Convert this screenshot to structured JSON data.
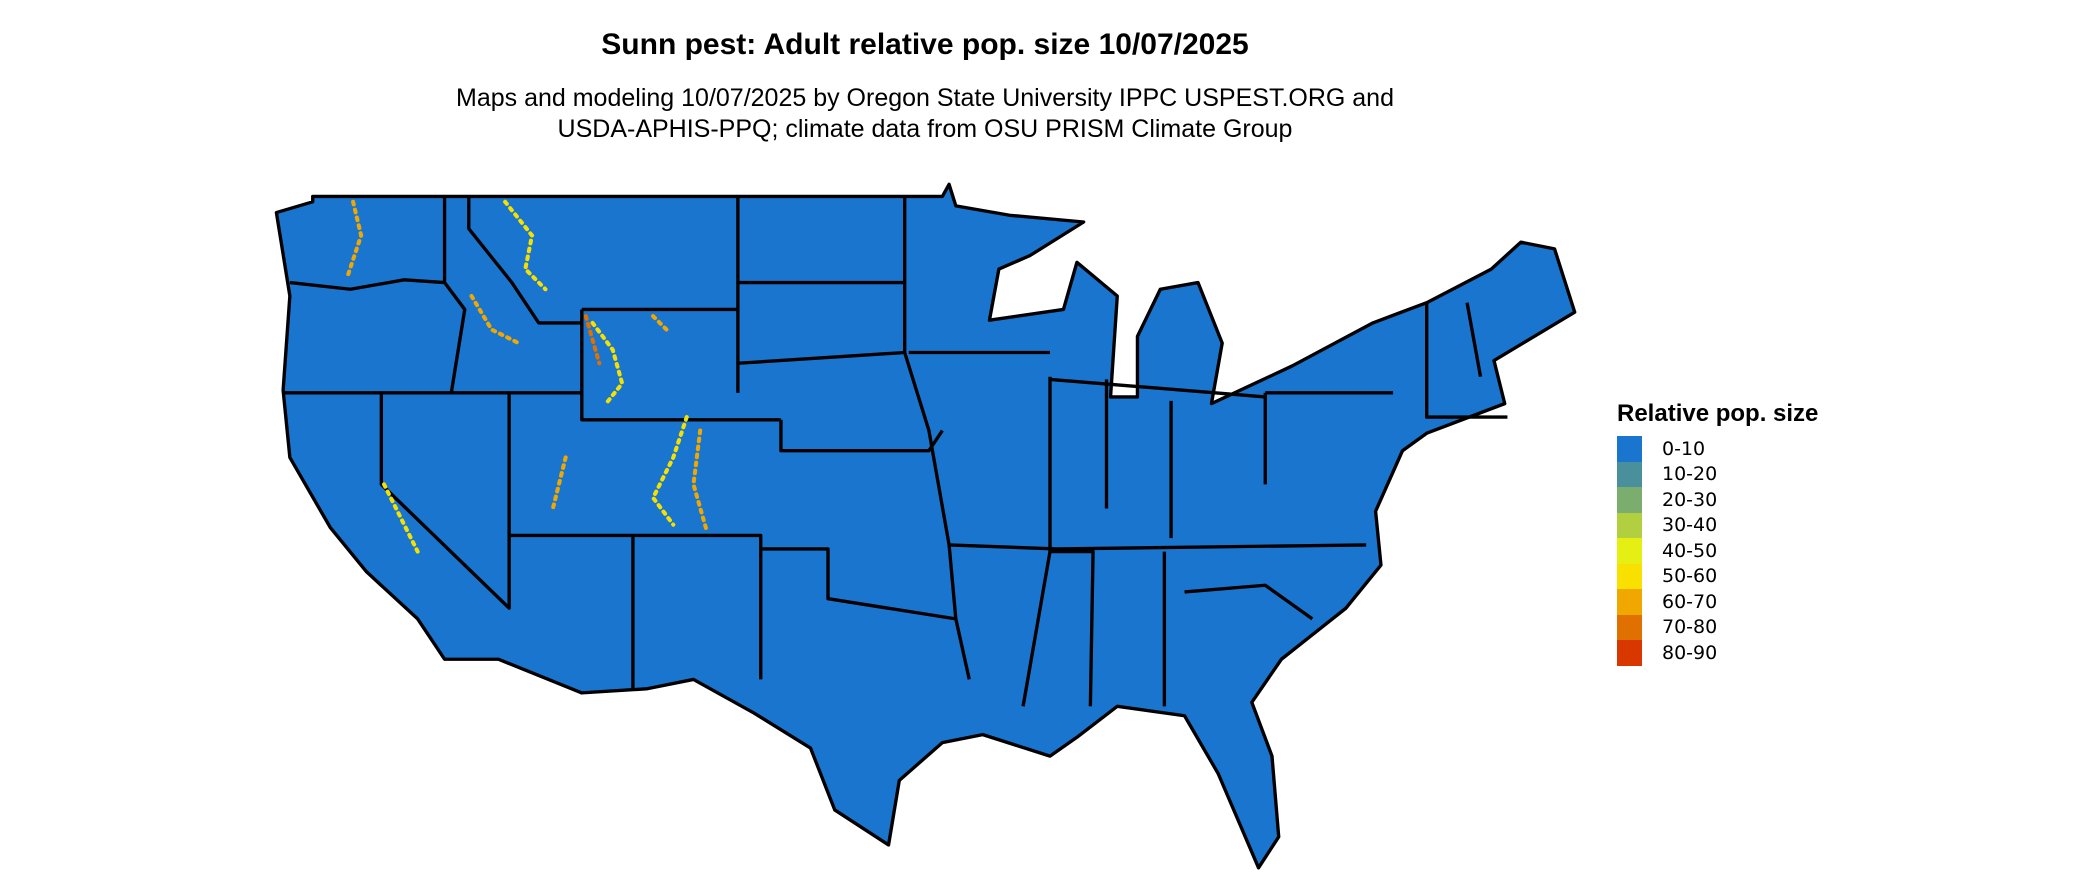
{
  "title": "Sunn pest: Adult relative pop. size 10/07/2025",
  "subtitle_lines": [
    "Maps and modeling 10/07/2025 by Oregon State University IPPC USPEST.ORG and",
    "USDA-APHIS-PPQ; climate data from OSU PRISM Climate Group"
  ],
  "map": {
    "region": "Contiguous United States",
    "base_color": "#1a75cf",
    "border_color": "#000000",
    "hotspot_colors": [
      "#f5e000",
      "#f0a800",
      "#e07000"
    ]
  },
  "legend": {
    "title": "Relative pop. size",
    "items": [
      {
        "label": "0-10",
        "color": "#1a75cf"
      },
      {
        "label": "10-20",
        "color": "#4a8f9c"
      },
      {
        "label": "20-30",
        "color": "#7bad6e"
      },
      {
        "label": "30-40",
        "color": "#b2cf40"
      },
      {
        "label": "40-50",
        "color": "#e5ef14"
      },
      {
        "label": "50-60",
        "color": "#f8e000"
      },
      {
        "label": "60-70",
        "color": "#f0a800"
      },
      {
        "label": "70-80",
        "color": "#e07000"
      },
      {
        "label": "80-90",
        "color": "#d83800"
      }
    ]
  }
}
